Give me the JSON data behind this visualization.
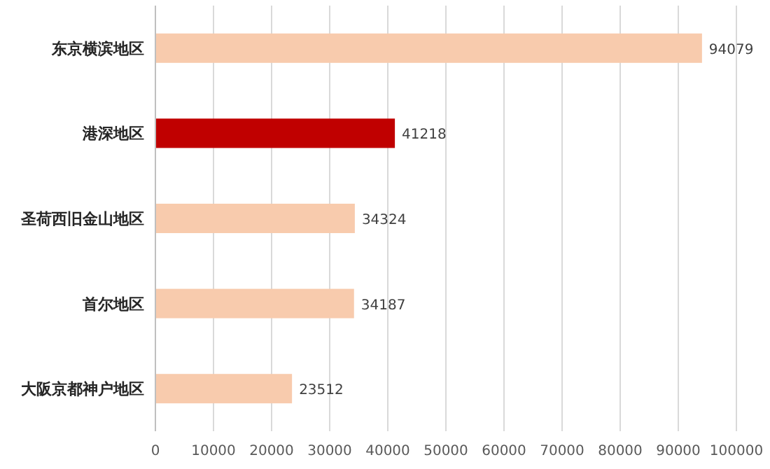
{
  "chart_data": {
    "type": "bar",
    "orientation": "horizontal",
    "categories": [
      "东京横滨地区",
      "港深地区",
      "圣荷西旧金山地区",
      "首尔地区",
      "大阪京都神户地区"
    ],
    "values": [
      94079,
      41218,
      34324,
      34187,
      23512
    ],
    "colors": [
      "#f8cbad",
      "#c00000",
      "#f8cbad",
      "#f8cbad",
      "#f8cbad"
    ],
    "xlim": [
      0,
      100000
    ],
    "xticks": [
      0,
      10000,
      20000,
      30000,
      40000,
      50000,
      60000,
      70000,
      80000,
      90000,
      100000
    ],
    "grid": "x",
    "data_labels": true
  }
}
